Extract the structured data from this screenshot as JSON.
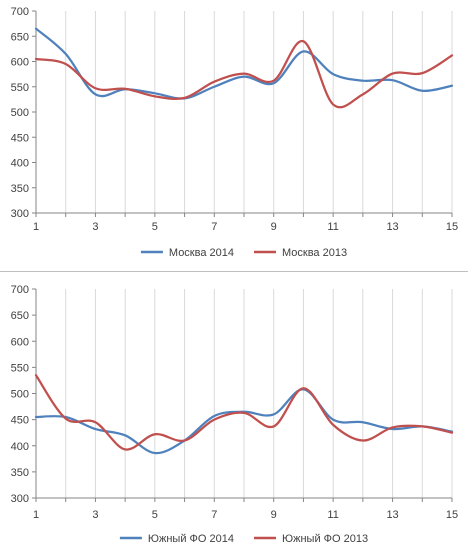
{
  "chart_data": [
    {
      "type": "line",
      "title": "",
      "xlabel": "",
      "ylabel": "",
      "x": [
        1,
        2,
        3,
        4,
        5,
        6,
        7,
        8,
        9,
        10,
        11,
        12,
        13,
        14,
        15
      ],
      "xticks": [
        1,
        3,
        5,
        7,
        9,
        11,
        13,
        15
      ],
      "ylim": [
        300,
        700
      ],
      "yticks": [
        300,
        350,
        400,
        450,
        500,
        550,
        600,
        650,
        700
      ],
      "grid": "vertical",
      "legend": "bottom",
      "series": [
        {
          "name": "Москва 2014",
          "color": "#4f81bd",
          "values": [
            665,
            615,
            535,
            545,
            537,
            527,
            550,
            570,
            557,
            620,
            575,
            562,
            563,
            542,
            552
          ]
        },
        {
          "name": "Москва 2013",
          "color": "#c0504d",
          "values": [
            605,
            595,
            547,
            546,
            531,
            528,
            560,
            576,
            562,
            640,
            515,
            535,
            576,
            577,
            612
          ]
        }
      ]
    },
    {
      "type": "line",
      "title": "",
      "xlabel": "",
      "ylabel": "",
      "x": [
        1,
        2,
        3,
        4,
        5,
        6,
        7,
        8,
        9,
        10,
        11,
        12,
        13,
        14,
        15
      ],
      "xticks": [
        1,
        3,
        5,
        7,
        9,
        11,
        13,
        15
      ],
      "ylim": [
        300,
        700
      ],
      "yticks": [
        300,
        350,
        400,
        450,
        500,
        550,
        600,
        650,
        700
      ],
      "grid": "vertical",
      "legend": "bottom",
      "series": [
        {
          "name": "Южный ФО 2014",
          "color": "#4f81bd",
          "values": [
            455,
            455,
            432,
            420,
            386,
            410,
            457,
            465,
            460,
            508,
            450,
            445,
            432,
            437,
            427
          ]
        },
        {
          "name": "Южный ФО 2013",
          "color": "#c0504d",
          "values": [
            535,
            452,
            445,
            393,
            422,
            410,
            450,
            463,
            437,
            510,
            440,
            410,
            435,
            437,
            425
          ]
        }
      ]
    }
  ]
}
